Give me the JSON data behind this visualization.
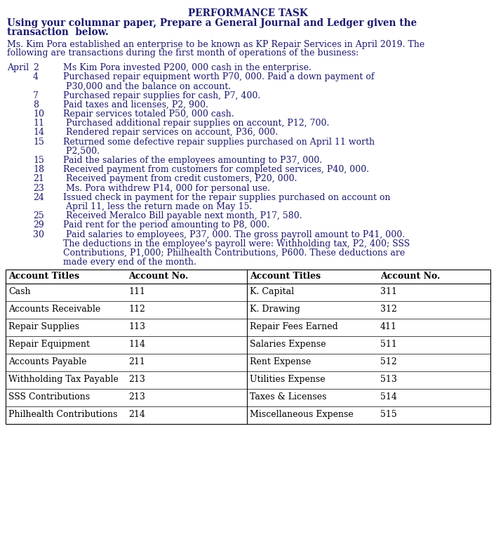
{
  "title": "PERFORMANCE TASK",
  "subtitle_line1": "Using your columnar paper, Prepare a General Journal and Ledger given the",
  "subtitle_line2": "transaction  below.",
  "intro_line1": "Ms. Kim Pora established an enterprise to be known as KP Repair Services in April 2019. The",
  "intro_line2": "following are transactions during the first month of operations of the business:",
  "tx_rows": [
    [
      "April",
      "2",
      "Ms Kim Pora invested P200, 000 cash in the enterprise."
    ],
    [
      "",
      "4",
      "Purchased repair equipment worth P70, 000. Paid a down payment of"
    ],
    [
      "",
      "",
      " P30,000 and the balance on account."
    ],
    [
      "",
      "7",
      "Purchased repair supplies for cash, P7, 400."
    ],
    [
      "",
      "8",
      "Paid taxes and licenses, P2, 900."
    ],
    [
      "",
      "10",
      "Repair services totaled P50, 000 cash."
    ],
    [
      "",
      "11",
      " Purchased additional repair supplies on account, P12, 700."
    ],
    [
      "",
      "14",
      " Rendered repair services on account, P36, 000."
    ],
    [
      "",
      "15",
      "Returned some defective repair supplies purchased on April 11 worth"
    ],
    [
      "",
      "",
      " P2,500."
    ],
    [
      "",
      "15",
      "Paid the salaries of the employees amounting to P37, 000."
    ],
    [
      "",
      "18",
      "Received payment from customers for completed services, P40, 000."
    ],
    [
      "",
      "21",
      " Received payment from credit customers, P20, 000."
    ],
    [
      "",
      "23",
      " Ms. Pora withdrew P14, 000 for personal use."
    ],
    [
      "",
      "24",
      "Issued check in payment for the repair supplies purchased on account on"
    ],
    [
      "",
      "",
      " April 11, less the return made on May 15."
    ],
    [
      "",
      "25",
      " Received Meralco Bill payable next month, P17, 580."
    ],
    [
      "",
      "29",
      "Paid rent for the period amounting to P8, 000."
    ],
    [
      "",
      "30",
      " Paid salaries to employees, P37, 000. The gross payroll amount to P41, 000."
    ],
    [
      "",
      "",
      "The deductions in the employee's payroll were: Withholding tax, P2, 400; SSS"
    ],
    [
      "",
      "",
      "Contributions, P1,000; Philhealth Contributions, P600. These deductions are"
    ],
    [
      "",
      "",
      "made every end of the month."
    ]
  ],
  "table_header_left": [
    "Account Titles",
    "Account No."
  ],
  "table_header_right": [
    "Account Titles",
    "Account No."
  ],
  "table_rows": [
    [
      "Cash",
      "111",
      "K. Capital",
      "311"
    ],
    [
      "Accounts Receivable",
      "112",
      "K. Drawing",
      "312"
    ],
    [
      "Repair Supplies",
      "113",
      "Repair Fees Earned",
      "411"
    ],
    [
      "Repair Equipment",
      "114",
      "Salaries Expense",
      "511"
    ],
    [
      "Accounts Payable",
      "211",
      "Rent Expense",
      "512"
    ],
    [
      "Withholding Tax Payable",
      "213",
      "Utilities Expense",
      "513"
    ],
    [
      "SSS Contributions",
      "213",
      "Taxes & Licenses",
      "514"
    ],
    [
      "Philhealth Contributions",
      "214",
      "Miscellaneous Expense",
      "515"
    ]
  ],
  "bg_color": "#ffffff",
  "title_color": "#1a1a6e",
  "subtitle_color": "#1a1a6e",
  "body_color": "#1a1a6e",
  "table_text_color": "#000000",
  "title_fontsize": 9.8,
  "subtitle_fontsize": 9.8,
  "body_fontsize": 9.0,
  "table_fontsize": 9.0,
  "font": "DejaVu Serif"
}
